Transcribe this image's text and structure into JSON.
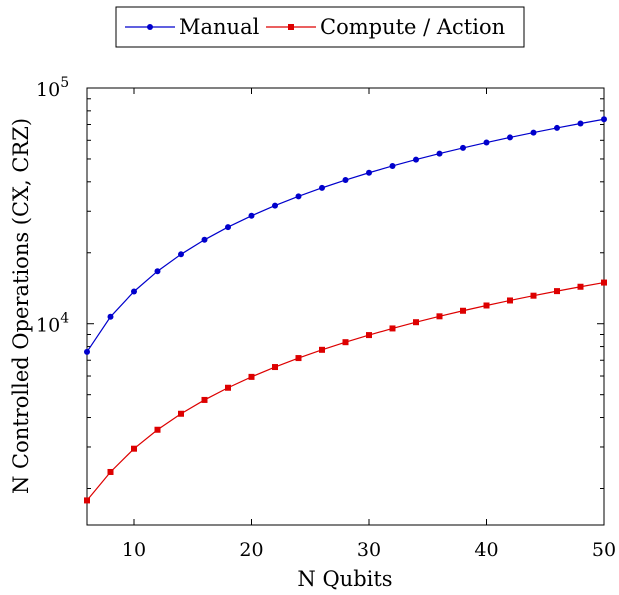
{
  "chart_data": {
    "type": "line",
    "title": "",
    "xlabel": "N Qubits",
    "ylabel": "N Controlled Operations (CX, CRZ)",
    "xlim": [
      6,
      50
    ],
    "ylim": [
      1400,
      100000
    ],
    "yscale": "log",
    "xticks": [
      10,
      20,
      30,
      40,
      50
    ],
    "xtick_labels": [
      "10",
      "20",
      "30",
      "40",
      "50"
    ],
    "yticks": [
      10000,
      100000
    ],
    "ytick_base": "10",
    "ytick_exponents": [
      "4",
      "5"
    ],
    "grid": false,
    "legend_position": "top-center",
    "x": [
      6,
      8,
      10,
      12,
      14,
      16,
      18,
      20,
      22,
      24,
      26,
      28,
      30,
      32,
      34,
      36,
      38,
      40,
      42,
      44,
      46,
      48,
      50
    ],
    "series": [
      {
        "name": "Manual",
        "color": "#0000cc",
        "marker": "circle",
        "values": [
          7600,
          10700,
          13700,
          16700,
          19700,
          22700,
          25700,
          28700,
          31700,
          34700,
          37700,
          40700,
          43700,
          46700,
          49700,
          52700,
          55700,
          58700,
          61700,
          64700,
          67700,
          70700,
          73700
        ]
      },
      {
        "name": "Compute / Action",
        "color": "#dd0000",
        "marker": "square",
        "values": [
          1780,
          2350,
          2950,
          3550,
          4150,
          4750,
          5350,
          5950,
          6550,
          7150,
          7750,
          8350,
          8950,
          9550,
          10150,
          10750,
          11350,
          11950,
          12550,
          13150,
          13750,
          14350,
          14950
        ]
      }
    ]
  }
}
